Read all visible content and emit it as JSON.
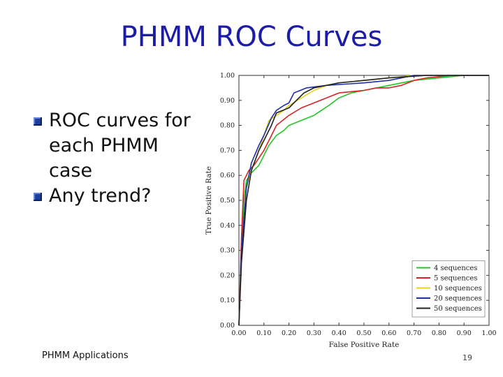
{
  "slide": {
    "title": "PHMM ROC Curves",
    "bullets": [
      "ROC curves for each PHMM case",
      "Any trend?"
    ],
    "footer": "PHMM Applications",
    "page_number": "19"
  },
  "colors": {
    "title": "#1c1ca8",
    "bullet_marker": "#1c3e9c"
  },
  "chart_data": {
    "type": "line",
    "xlabel": "False Positive Rate",
    "ylabel": "True Positive Rate",
    "xlim": [
      0,
      1
    ],
    "ylim": [
      0,
      1
    ],
    "x_ticks": [
      "0.00",
      "0.10",
      "0.20",
      "0.30",
      "0.40",
      "0.50",
      "0.60",
      "0.70",
      "0.80",
      "0.90",
      "1.00"
    ],
    "y_ticks": [
      "0.00",
      "0.10",
      "0.20",
      "0.30",
      "0.40",
      "0.50",
      "0.60",
      "0.70",
      "0.80",
      "0.90",
      "1.00"
    ],
    "grid": false,
    "legend_position": "bottom-right",
    "series": [
      {
        "name": "4 sequences",
        "color": "#27c427",
        "points": [
          [
            0,
            0
          ],
          [
            0.01,
            0.3
          ],
          [
            0.02,
            0.5
          ],
          [
            0.03,
            0.58
          ],
          [
            0.05,
            0.61
          ],
          [
            0.08,
            0.64
          ],
          [
            0.1,
            0.68
          ],
          [
            0.12,
            0.72
          ],
          [
            0.15,
            0.76
          ],
          [
            0.18,
            0.78
          ],
          [
            0.2,
            0.8
          ],
          [
            0.25,
            0.82
          ],
          [
            0.3,
            0.84
          ],
          [
            0.33,
            0.86
          ],
          [
            0.36,
            0.88
          ],
          [
            0.4,
            0.91
          ],
          [
            0.45,
            0.93
          ],
          [
            0.5,
            0.94
          ],
          [
            0.6,
            0.96
          ],
          [
            0.7,
            0.98
          ],
          [
            0.8,
            0.99
          ],
          [
            0.9,
            1.0
          ],
          [
            1.0,
            1.0
          ]
        ]
      },
      {
        "name": "5 sequences",
        "color": "#d42525",
        "points": [
          [
            0,
            0
          ],
          [
            0.01,
            0.35
          ],
          [
            0.02,
            0.58
          ],
          [
            0.04,
            0.62
          ],
          [
            0.06,
            0.64
          ],
          [
            0.1,
            0.7
          ],
          [
            0.12,
            0.74
          ],
          [
            0.15,
            0.8
          ],
          [
            0.2,
            0.84
          ],
          [
            0.25,
            0.87
          ],
          [
            0.3,
            0.89
          ],
          [
            0.35,
            0.91
          ],
          [
            0.4,
            0.93
          ],
          [
            0.5,
            0.94
          ],
          [
            0.55,
            0.95
          ],
          [
            0.6,
            0.95
          ],
          [
            0.65,
            0.96
          ],
          [
            0.7,
            0.98
          ],
          [
            0.75,
            0.99
          ],
          [
            0.85,
            1.0
          ],
          [
            1.0,
            1.0
          ]
        ]
      },
      {
        "name": "10 sequences",
        "color": "#e6d21c",
        "points": [
          [
            0,
            0
          ],
          [
            0.01,
            0.3
          ],
          [
            0.03,
            0.55
          ],
          [
            0.05,
            0.62
          ],
          [
            0.08,
            0.7
          ],
          [
            0.1,
            0.76
          ],
          [
            0.12,
            0.82
          ],
          [
            0.15,
            0.84
          ],
          [
            0.18,
            0.86
          ],
          [
            0.2,
            0.88
          ],
          [
            0.25,
            0.91
          ],
          [
            0.3,
            0.94
          ],
          [
            0.35,
            0.96
          ],
          [
            0.4,
            0.97
          ],
          [
            0.5,
            0.98
          ],
          [
            0.6,
            0.99
          ],
          [
            0.7,
            1.0
          ],
          [
            1.0,
            1.0
          ]
        ]
      },
      {
        "name": "20 sequences",
        "color": "#1f2fa8",
        "points": [
          [
            0,
            0
          ],
          [
            0.01,
            0.3
          ],
          [
            0.03,
            0.55
          ],
          [
            0.05,
            0.65
          ],
          [
            0.08,
            0.72
          ],
          [
            0.1,
            0.76
          ],
          [
            0.13,
            0.83
          ],
          [
            0.15,
            0.86
          ],
          [
            0.18,
            0.88
          ],
          [
            0.2,
            0.89
          ],
          [
            0.22,
            0.93
          ],
          [
            0.27,
            0.95
          ],
          [
            0.35,
            0.96
          ],
          [
            0.5,
            0.97
          ],
          [
            0.6,
            0.98
          ],
          [
            0.7,
            1.0
          ],
          [
            1.0,
            1.0
          ]
        ]
      },
      {
        "name": "50 sequences",
        "color": "#222222",
        "points": [
          [
            0,
            0
          ],
          [
            0.01,
            0.25
          ],
          [
            0.03,
            0.5
          ],
          [
            0.05,
            0.62
          ],
          [
            0.08,
            0.7
          ],
          [
            0.1,
            0.74
          ],
          [
            0.13,
            0.8
          ],
          [
            0.15,
            0.85
          ],
          [
            0.2,
            0.87
          ],
          [
            0.23,
            0.9
          ],
          [
            0.26,
            0.93
          ],
          [
            0.3,
            0.95
          ],
          [
            0.4,
            0.97
          ],
          [
            0.5,
            0.98
          ],
          [
            0.6,
            0.99
          ],
          [
            0.75,
            1.0
          ],
          [
            1.0,
            1.0
          ]
        ]
      }
    ]
  }
}
